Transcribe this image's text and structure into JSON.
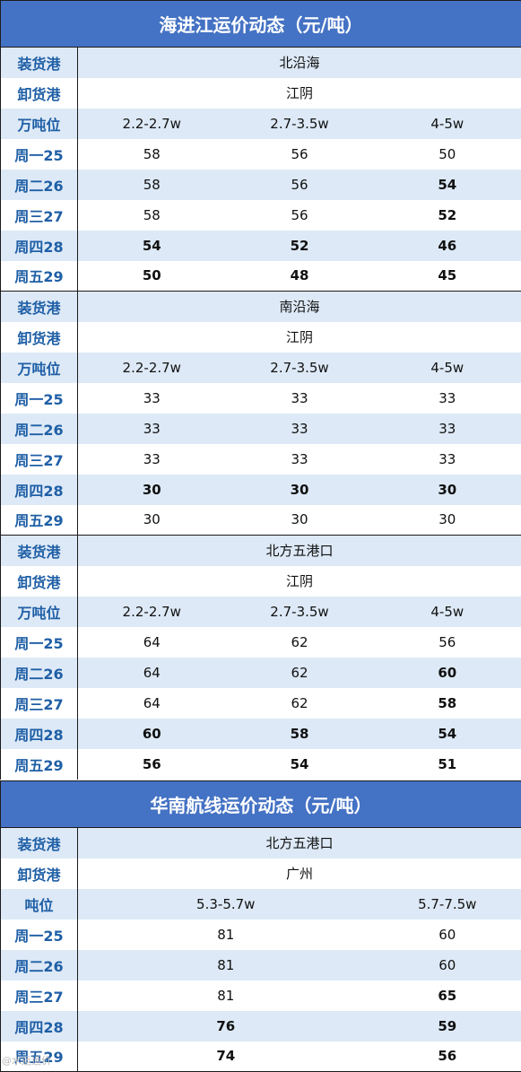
{
  "sections": [
    {
      "title": "海进江运价动态（元/吨）",
      "blocks": [
        {
          "load_label": "装货港",
          "load_port": "北沿海",
          "unload_label": "卸货港",
          "unload_port": "江阴",
          "size_label": "万吨位",
          "sizes": [
            "2.2-2.7w",
            "2.7-3.5w",
            "4-5w"
          ],
          "rows": [
            {
              "day": "周一25",
              "values": [
                "58",
                "56",
                "50"
              ],
              "bold": [
                false,
                false,
                false
              ]
            },
            {
              "day": "周二26",
              "values": [
                "58",
                "56",
                "54"
              ],
              "bold": [
                false,
                false,
                true
              ]
            },
            {
              "day": "周三27",
              "values": [
                "58",
                "56",
                "52"
              ],
              "bold": [
                false,
                false,
                true
              ]
            },
            {
              "day": "周四28",
              "values": [
                "54",
                "52",
                "46"
              ],
              "bold": [
                true,
                true,
                true
              ]
            },
            {
              "day": "周五29",
              "values": [
                "50",
                "48",
                "45"
              ],
              "bold": [
                true,
                true,
                true
              ]
            }
          ]
        },
        {
          "load_label": "装货港",
          "load_port": "南沿海",
          "unload_label": "卸货港",
          "unload_port": "江阴",
          "size_label": "万吨位",
          "sizes": [
            "2.2-2.7w",
            "2.7-3.5w",
            "4-5w"
          ],
          "rows": [
            {
              "day": "周一25",
              "values": [
                "33",
                "33",
                "33"
              ],
              "bold": [
                false,
                false,
                false
              ]
            },
            {
              "day": "周二26",
              "values": [
                "33",
                "33",
                "33"
              ],
              "bold": [
                false,
                false,
                false
              ]
            },
            {
              "day": "周三27",
              "values": [
                "33",
                "33",
                "33"
              ],
              "bold": [
                false,
                false,
                false
              ]
            },
            {
              "day": "周四28",
              "values": [
                "30",
                "30",
                "30"
              ],
              "bold": [
                true,
                true,
                true
              ]
            },
            {
              "day": "周五29",
              "values": [
                "30",
                "30",
                "30"
              ],
              "bold": [
                false,
                false,
                false
              ]
            }
          ]
        },
        {
          "load_label": "装货港",
          "load_port": "北方五港口",
          "unload_label": "卸货港",
          "unload_port": "江阴",
          "size_label": "万吨位",
          "sizes": [
            "2.2-2.7w",
            "2.7-3.5w",
            "4-5w"
          ],
          "rows": [
            {
              "day": "周一25",
              "values": [
                "64",
                "62",
                "56"
              ],
              "bold": [
                false,
                false,
                false
              ]
            },
            {
              "day": "周二26",
              "values": [
                "64",
                "62",
                "60"
              ],
              "bold": [
                false,
                false,
                true
              ]
            },
            {
              "day": "周三27",
              "values": [
                "64",
                "62",
                "58"
              ],
              "bold": [
                false,
                false,
                true
              ]
            },
            {
              "day": "周四28",
              "values": [
                "60",
                "58",
                "54"
              ],
              "bold": [
                true,
                true,
                true
              ]
            },
            {
              "day": "周五29",
              "values": [
                "56",
                "54",
                "51"
              ],
              "bold": [
                true,
                true,
                true
              ]
            }
          ]
        }
      ]
    },
    {
      "title": "华南航线运价动态（元/吨）",
      "blocks": [
        {
          "load_label": "装货港",
          "load_port": "北方五港口",
          "unload_label": "卸货港",
          "unload_port": "广州",
          "size_label": "吨位",
          "sizes": [
            "5.3-5.7w",
            "5.7-7.5w"
          ],
          "rows": [
            {
              "day": "周一25",
              "values": [
                "81",
                "60"
              ],
              "bold": [
                false,
                false
              ]
            },
            {
              "day": "周二26",
              "values": [
                "81",
                "60"
              ],
              "bold": [
                false,
                false
              ]
            },
            {
              "day": "周三27",
              "values": [
                "81",
                "65"
              ],
              "bold": [
                false,
                true
              ]
            },
            {
              "day": "周四28",
              "values": [
                "76",
                "59"
              ],
              "bold": [
                true,
                true
              ]
            },
            {
              "day": "周五29",
              "values": [
                "74",
                "56"
              ],
              "bold": [
                true,
                true
              ]
            }
          ]
        }
      ]
    }
  ],
  "watermark": "@水运运价"
}
